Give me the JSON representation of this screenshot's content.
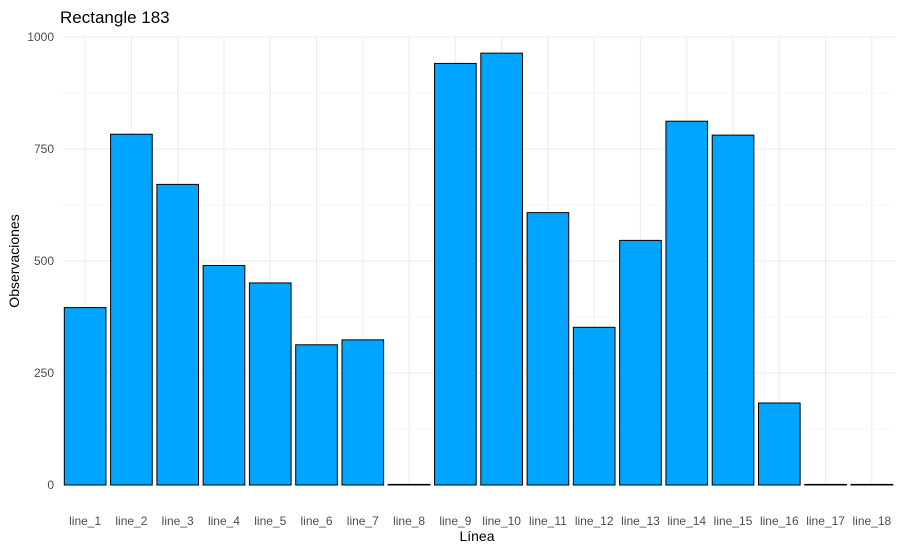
{
  "chart_data": {
    "type": "bar",
    "title": "Rectangle 183",
    "xlabel": "Línea",
    "ylabel": "Observaciones",
    "categories": [
      "line_1",
      "line_2",
      "line_3",
      "line_4",
      "line_5",
      "line_6",
      "line_7",
      "line_8",
      "line_9",
      "line_10",
      "line_11",
      "line_12",
      "line_13",
      "line_14",
      "line_15",
      "line_16",
      "line_17",
      "line_18"
    ],
    "values": [
      396,
      783,
      671,
      490,
      451,
      313,
      324,
      1,
      941,
      964,
      608,
      352,
      546,
      812,
      781,
      183,
      1,
      1
    ],
    "ylim": [
      0,
      1000
    ],
    "yticks": [
      0,
      250,
      500,
      750,
      1000
    ],
    "grid": true,
    "legend": "none",
    "colors": {
      "bar_fill": "#00A5FF",
      "bar_stroke": "#000000",
      "grid": "#ebebeb",
      "tick_text": "#4d4d4d"
    }
  }
}
